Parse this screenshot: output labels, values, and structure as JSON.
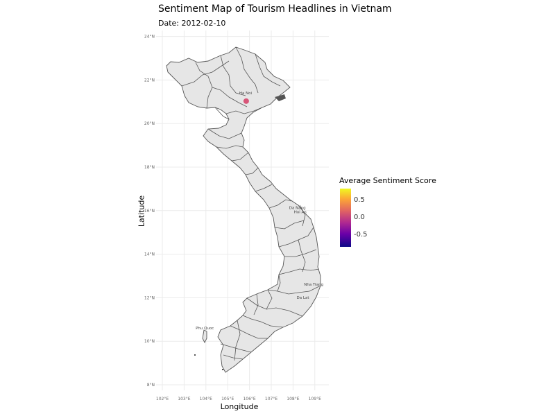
{
  "title": "Sentiment Map of Tourism Headlines in Vietnam",
  "subtitle": "Date: 2012-02-10",
  "x_axis_label": "Longitude",
  "y_axis_label": "Latitude",
  "x_ticks": [
    {
      "value": 102,
      "label": "102°E"
    },
    {
      "value": 103,
      "label": "103°E"
    },
    {
      "value": 104,
      "label": "104°E"
    },
    {
      "value": 105,
      "label": "105°E"
    },
    {
      "value": 106,
      "label": "106°E"
    },
    {
      "value": 107,
      "label": "107°E"
    },
    {
      "value": 108,
      "label": "108°E"
    },
    {
      "value": 109,
      "label": "109°E"
    }
  ],
  "y_ticks": [
    {
      "value": 8,
      "label": "8°N"
    },
    {
      "value": 10,
      "label": "10°N"
    },
    {
      "value": 12,
      "label": "12°N"
    },
    {
      "value": 14,
      "label": "14°N"
    },
    {
      "value": 16,
      "label": "16°N"
    },
    {
      "value": 18,
      "label": "18°N"
    },
    {
      "value": 20,
      "label": "20°N"
    },
    {
      "value": 22,
      "label": "22°N"
    },
    {
      "value": 24,
      "label": "24°N"
    }
  ],
  "legend": {
    "title": "Average Sentiment Score",
    "ticks": [
      {
        "value": 0.5,
        "label": "0.5"
      },
      {
        "value": 0.0,
        "label": "0.0"
      },
      {
        "value": -0.5,
        "label": "-0.5"
      }
    ],
    "range": [
      -0.85,
      0.85
    ],
    "colors": [
      "#0d0887",
      "#6a00a8",
      "#b12a90",
      "#e16462",
      "#fca636",
      "#f0f921"
    ]
  },
  "points": [
    {
      "lon": 105.85,
      "lat": 21.03,
      "sentiment": 0.15,
      "color": "#d6456c"
    }
  ],
  "place_labels": [
    {
      "text": "Phu Quoc",
      "lon": 103.95,
      "lat": 10.55
    },
    {
      "text": "Da Nang",
      "lon": 108.2,
      "lat": 16.07
    },
    {
      "text": "Hoi An",
      "lon": 108.33,
      "lat": 15.88
    },
    {
      "text": "Nha Trang",
      "lon": 108.95,
      "lat": 12.55
    },
    {
      "text": "Da Lat",
      "lon": 108.45,
      "lat": 11.95
    },
    {
      "text": "Ha Noi",
      "lon": 105.82,
      "lat": 21.35
    }
  ],
  "colors": {
    "land_fill": "#e6e6e6",
    "border": "#555555",
    "grid": "#ebebeb"
  }
}
